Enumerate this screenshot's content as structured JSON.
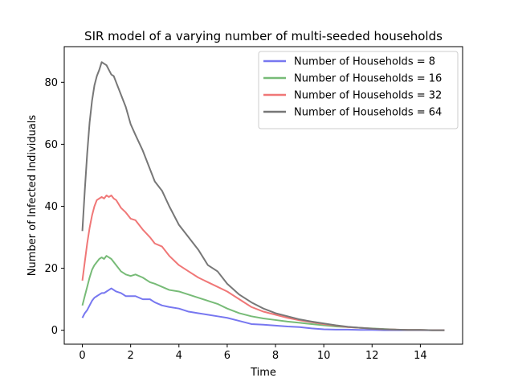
{
  "chart_data": {
    "type": "line",
    "title": "SIR model of a varying number of multi-seeded households",
    "xlabel": "Time",
    "ylabel": "Number of Infected Individuals",
    "xlim": [
      -0.75,
      15.75
    ],
    "ylim": [
      -4.5,
      91.5
    ],
    "xticks": [
      0,
      2,
      4,
      6,
      8,
      10,
      12,
      14
    ],
    "yticks": [
      0,
      20,
      40,
      60,
      80
    ],
    "grid": false,
    "legend_placement": "top-right",
    "series": [
      {
        "name": "Number of Households = 8",
        "color": "#7777f0",
        "x": [
          0,
          0.1,
          0.2,
          0.3,
          0.4,
          0.5,
          0.6,
          0.7,
          0.8,
          0.9,
          1.0,
          1.1,
          1.2,
          1.3,
          1.4,
          1.6,
          1.8,
          2.0,
          2.2,
          2.5,
          2.8,
          3.0,
          3.3,
          3.6,
          4.0,
          4.4,
          4.8,
          5.2,
          5.6,
          6.0,
          6.5,
          7.0,
          7.5,
          8.0,
          8.5,
          9.0,
          9.5,
          10.0,
          10.5,
          11.0,
          11.5,
          12.0,
          12.5,
          13.0,
          13.5,
          14.0,
          14.5,
          15.0
        ],
        "values": [
          4,
          5.5,
          6.5,
          8,
          9.5,
          10.5,
          11,
          11.5,
          12,
          12,
          12.5,
          13,
          13.5,
          13,
          12.5,
          12,
          11,
          11,
          11,
          10,
          10,
          9,
          8,
          7.5,
          7,
          6,
          5.5,
          5,
          4.5,
          4,
          3,
          2,
          1.8,
          1.5,
          1.2,
          1,
          0.6,
          0.3,
          0.2,
          0.2,
          0.1,
          0.1,
          0,
          0,
          0,
          0,
          0,
          0
        ]
      },
      {
        "name": "Number of Households = 16",
        "color": "#77bb77",
        "x": [
          0,
          0.1,
          0.2,
          0.3,
          0.4,
          0.5,
          0.6,
          0.7,
          0.8,
          0.9,
          1.0,
          1.1,
          1.2,
          1.3,
          1.4,
          1.6,
          1.8,
          2.0,
          2.2,
          2.5,
          2.8,
          3.0,
          3.3,
          3.6,
          4.0,
          4.4,
          4.8,
          5.2,
          5.6,
          6.0,
          6.5,
          7.0,
          7.5,
          8.0,
          8.5,
          9.0,
          9.5,
          10.0,
          10.5,
          11.0,
          11.5,
          12.0,
          12.5,
          13.0,
          13.5,
          14.0,
          14.5,
          15.0
        ],
        "values": [
          8,
          11,
          14,
          17,
          19.5,
          21,
          22,
          23,
          23.5,
          23,
          24,
          23.5,
          23,
          22,
          21,
          19,
          18,
          17.5,
          18,
          17,
          15.5,
          15,
          14,
          13,
          12.5,
          11.5,
          10.5,
          9.5,
          8.5,
          7,
          5.5,
          4.5,
          3.8,
          3.3,
          2.8,
          2.4,
          2,
          1.6,
          1.2,
          1,
          0.8,
          0.6,
          0.4,
          0.2,
          0.1,
          0.1,
          0,
          0
        ]
      },
      {
        "name": "Number of Households = 32",
        "color": "#f07777",
        "x": [
          0,
          0.1,
          0.2,
          0.3,
          0.4,
          0.5,
          0.6,
          0.7,
          0.8,
          0.9,
          1.0,
          1.1,
          1.2,
          1.3,
          1.4,
          1.6,
          1.8,
          2.0,
          2.2,
          2.5,
          2.8,
          3.0,
          3.3,
          3.6,
          4.0,
          4.4,
          4.8,
          5.2,
          5.6,
          6.0,
          6.5,
          7.0,
          7.5,
          8.0,
          8.5,
          9.0,
          9.5,
          10.0,
          10.5,
          11.0,
          11.5,
          12.0,
          12.5,
          13.0,
          13.5,
          14.0,
          14.5,
          15.0
        ],
        "values": [
          16,
          22,
          28,
          33,
          37,
          40,
          42,
          42.5,
          43,
          42.5,
          43.5,
          43,
          43.5,
          42.5,
          42,
          39.5,
          38,
          36,
          35.5,
          32.5,
          30,
          28,
          27,
          24,
          21,
          19,
          17,
          15.5,
          14,
          12.5,
          10,
          7.5,
          6,
          5,
          4,
          3.2,
          2.6,
          2,
          1.5,
          1,
          0.8,
          0.5,
          0.3,
          0.2,
          0.1,
          0.1,
          0,
          0
        ]
      },
      {
        "name": "Number of Households = 64",
        "color": "#777777",
        "x": [
          0,
          0.1,
          0.2,
          0.3,
          0.4,
          0.5,
          0.6,
          0.7,
          0.8,
          0.9,
          1.0,
          1.1,
          1.2,
          1.3,
          1.4,
          1.6,
          1.8,
          2.0,
          2.2,
          2.5,
          2.8,
          3.0,
          3.3,
          3.6,
          4.0,
          4.4,
          4.8,
          5.2,
          5.6,
          6.0,
          6.5,
          7.0,
          7.5,
          8.0,
          8.5,
          9.0,
          9.5,
          10.0,
          10.5,
          11.0,
          11.5,
          12.0,
          12.5,
          13.0,
          13.5,
          14.0,
          14.5,
          15.0
        ],
        "values": [
          32,
          45,
          57,
          67,
          74,
          79,
          82,
          84,
          86.5,
          86,
          85.5,
          84,
          82.5,
          82,
          80,
          76,
          72,
          66.5,
          63,
          58,
          52,
          48,
          45,
          40,
          34,
          30,
          26,
          21,
          19,
          15,
          11.5,
          9,
          7,
          5.5,
          4.5,
          3.5,
          2.8,
          2.2,
          1.6,
          1.1,
          0.8,
          0.5,
          0.3,
          0.2,
          0.1,
          0.1,
          0,
          0
        ]
      }
    ]
  }
}
